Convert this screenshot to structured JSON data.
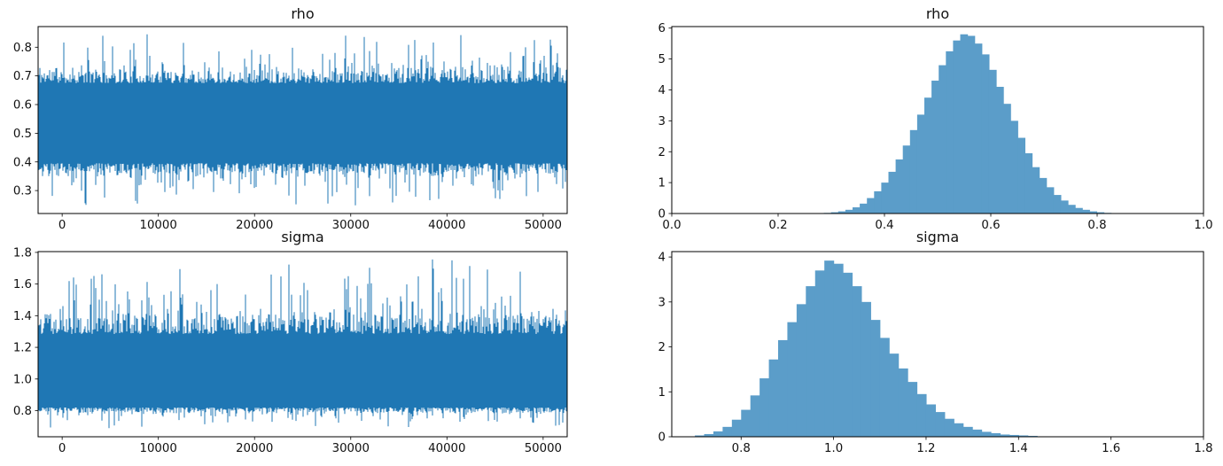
{
  "figure": {
    "background": "#ffffff",
    "frame_color": "#000000",
    "text_color": "#111111",
    "trace_color": "#1f77b4",
    "hist_color": "#5b9dc9"
  },
  "chart_data": [
    {
      "id": "rho-trace",
      "type": "line",
      "variant": "mcmc-trace",
      "title": "rho",
      "n_samples": 50000,
      "color": "#1f77b4",
      "xlim": [
        -2500,
        52500
      ],
      "ylim": [
        0.22,
        0.872
      ],
      "xticks": [
        {
          "v": 0,
          "label": "0"
        },
        {
          "v": 10000,
          "label": "10000"
        },
        {
          "v": 20000,
          "label": "20000"
        },
        {
          "v": 30000,
          "label": "30000"
        },
        {
          "v": 40000,
          "label": "40000"
        },
        {
          "v": 50000,
          "label": "50000"
        }
      ],
      "yticks": [
        {
          "v": 0.3,
          "label": "0.3"
        },
        {
          "v": 0.4,
          "label": "0.4"
        },
        {
          "v": 0.5,
          "label": "0.5"
        },
        {
          "v": 0.6,
          "label": "0.6"
        },
        {
          "v": 0.7,
          "label": "0.7"
        },
        {
          "v": 0.8,
          "label": "0.8"
        }
      ],
      "mean": 0.535,
      "band_core": [
        0.395,
        0.675
      ],
      "band_extreme": [
        0.248,
        0.845
      ],
      "notable_points": [
        {
          "x": 8800,
          "y": 0.845
        },
        {
          "x": 12600,
          "y": 0.815
        },
        {
          "x": 2500,
          "y": 0.25
        },
        {
          "x": 7800,
          "y": 0.255
        },
        {
          "x": 24300,
          "y": 0.252
        }
      ]
    },
    {
      "id": "rho-hist",
      "type": "histogram",
      "title": "rho",
      "color": "#5b9dc9",
      "xlim": [
        0.0,
        1.0
      ],
      "ylim": [
        0,
        6.05
      ],
      "xticks": [
        {
          "v": 0.0,
          "label": "0.0"
        },
        {
          "v": 0.2,
          "label": "0.2"
        },
        {
          "v": 0.4,
          "label": "0.4"
        },
        {
          "v": 0.6,
          "label": "0.6"
        },
        {
          "v": 0.8,
          "label": "0.8"
        },
        {
          "v": 1.0,
          "label": "1.0"
        }
      ],
      "yticks": [
        {
          "v": 0,
          "label": "0"
        },
        {
          "v": 1,
          "label": "1"
        },
        {
          "v": 2,
          "label": "2"
        },
        {
          "v": 3,
          "label": "3"
        },
        {
          "v": 4,
          "label": "4"
        },
        {
          "v": 5,
          "label": "5"
        },
        {
          "v": 6,
          "label": "6"
        }
      ],
      "peak": {
        "x": 0.545,
        "y": 5.8
      },
      "bins": {
        "start": 0.286,
        "width": 0.0135,
        "heights": [
          0.02,
          0.04,
          0.07,
          0.12,
          0.2,
          0.32,
          0.5,
          0.72,
          1.0,
          1.35,
          1.75,
          2.2,
          2.7,
          3.2,
          3.75,
          4.3,
          4.8,
          5.25,
          5.6,
          5.8,
          5.75,
          5.5,
          5.15,
          4.65,
          4.1,
          3.55,
          3.0,
          2.45,
          1.95,
          1.5,
          1.15,
          0.85,
          0.6,
          0.42,
          0.28,
          0.18,
          0.12,
          0.07,
          0.04,
          0.02
        ]
      }
    },
    {
      "id": "sigma-trace",
      "type": "line",
      "variant": "mcmc-trace",
      "title": "sigma",
      "n_samples": 50000,
      "color": "#1f77b4",
      "xlim": [
        -2500,
        52500
      ],
      "ylim": [
        0.635,
        1.805
      ],
      "xticks": [
        {
          "v": 0,
          "label": "0"
        },
        {
          "v": 10000,
          "label": "10000"
        },
        {
          "v": 20000,
          "label": "20000"
        },
        {
          "v": 30000,
          "label": "30000"
        },
        {
          "v": 40000,
          "label": "40000"
        },
        {
          "v": 50000,
          "label": "50000"
        }
      ],
      "yticks": [
        {
          "v": 0.8,
          "label": "0.8"
        },
        {
          "v": 1.0,
          "label": "1.0"
        },
        {
          "v": 1.2,
          "label": "1.2"
        },
        {
          "v": 1.4,
          "label": "1.4"
        },
        {
          "v": 1.6,
          "label": "1.6"
        },
        {
          "v": 1.8,
          "label": "1.8"
        }
      ],
      "mean": 1.02,
      "band_core": [
        0.82,
        1.285
      ],
      "band_extreme": [
        0.69,
        1.76
      ],
      "notable_points": [
        {
          "x": 38500,
          "y": 1.755
        },
        {
          "x": 21700,
          "y": 1.66
        },
        {
          "x": 29700,
          "y": 1.65
        },
        {
          "x": 16100,
          "y": 1.6
        },
        {
          "x": 11300,
          "y": 1.555
        },
        {
          "x": 4900,
          "y": 0.69
        }
      ]
    },
    {
      "id": "sigma-hist",
      "type": "histogram",
      "title": "sigma",
      "color": "#5b9dc9",
      "xlim": [
        0.65,
        1.8
      ],
      "ylim": [
        0,
        4.12
      ],
      "xticks": [
        {
          "v": 0.8,
          "label": "0.8"
        },
        {
          "v": 1.0,
          "label": "1.0"
        },
        {
          "v": 1.2,
          "label": "1.2"
        },
        {
          "v": 1.4,
          "label": "1.4"
        },
        {
          "v": 1.6,
          "label": "1.6"
        },
        {
          "v": 1.8,
          "label": "1.8"
        }
      ],
      "yticks": [
        {
          "v": 0,
          "label": "0"
        },
        {
          "v": 1,
          "label": "1"
        },
        {
          "v": 2,
          "label": "2"
        },
        {
          "v": 3,
          "label": "3"
        },
        {
          "v": 4,
          "label": "4"
        }
      ],
      "peak": {
        "x": 0.98,
        "y": 3.92
      },
      "bins": {
        "start": 0.7,
        "width": 0.02,
        "heights": [
          0.03,
          0.06,
          0.12,
          0.22,
          0.38,
          0.6,
          0.92,
          1.3,
          1.72,
          2.15,
          2.55,
          2.95,
          3.35,
          3.7,
          3.92,
          3.85,
          3.65,
          3.35,
          3.0,
          2.6,
          2.2,
          1.85,
          1.52,
          1.22,
          0.95,
          0.72,
          0.55,
          0.4,
          0.3,
          0.22,
          0.16,
          0.11,
          0.08,
          0.05,
          0.04,
          0.03,
          0.02,
          0.01
        ]
      }
    }
  ]
}
